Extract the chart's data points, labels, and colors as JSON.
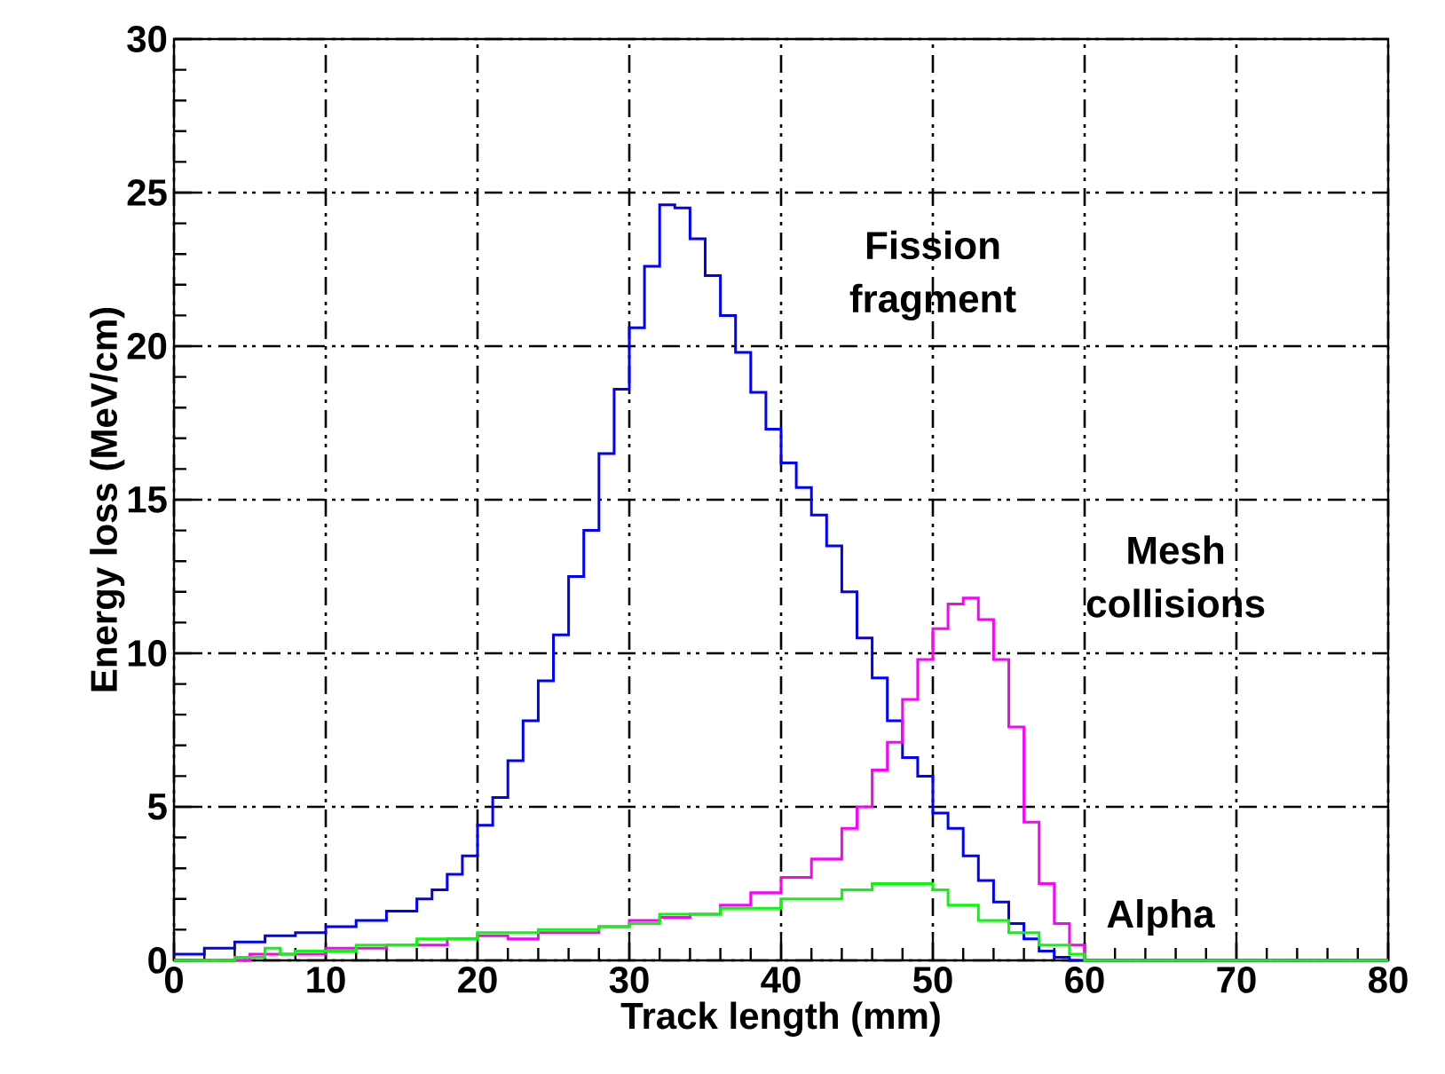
{
  "chart_data": {
    "type": "step",
    "xlabel": "Track length (mm)",
    "ylabel": "Energy loss (MeV/cm)",
    "xlim": [
      0,
      80
    ],
    "ylim": [
      0,
      30
    ],
    "xticks": [
      0,
      10,
      20,
      30,
      40,
      50,
      60,
      70,
      80
    ],
    "yticks": [
      0,
      5,
      10,
      15,
      20,
      25,
      30
    ],
    "grid": true,
    "series": [
      {
        "name": "Fission fragment",
        "color": "#0000ff",
        "x": [
          0,
          2,
          4,
          6,
          8,
          10,
          12,
          14,
          16,
          17,
          18,
          19,
          20,
          21,
          22,
          23,
          24,
          25,
          26,
          27,
          28,
          29,
          30,
          31,
          32,
          33,
          34,
          35,
          36,
          37,
          38,
          39,
          40,
          41,
          42,
          43,
          44,
          45,
          46,
          47,
          48,
          49,
          50,
          51,
          52,
          53,
          54,
          55,
          56,
          57,
          58,
          59,
          80
        ],
        "values": [
          0.2,
          0.4,
          0.6,
          0.8,
          0.9,
          1.1,
          1.3,
          1.6,
          2.0,
          2.3,
          2.8,
          3.4,
          4.4,
          5.3,
          6.5,
          7.8,
          9.1,
          10.6,
          12.5,
          14.0,
          16.5,
          18.6,
          20.6,
          22.6,
          24.6,
          24.5,
          23.5,
          22.3,
          21.0,
          19.8,
          18.5,
          17.3,
          16.2,
          15.4,
          14.5,
          13.5,
          12.0,
          10.5,
          9.2,
          7.8,
          6.6,
          6.0,
          4.8,
          4.3,
          3.4,
          2.6,
          1.9,
          1.2,
          0.7,
          0.3,
          0.1,
          0,
          0
        ]
      },
      {
        "name": "Mesh collisions",
        "color": "#ff00ff",
        "x": [
          0,
          5,
          8,
          10,
          14,
          18,
          20,
          22,
          24,
          28,
          30,
          32,
          34,
          36,
          38,
          40,
          42,
          44,
          45,
          46,
          47,
          48,
          49,
          50,
          51,
          52,
          53,
          54,
          55,
          56,
          57,
          58,
          59,
          60,
          80
        ],
        "values": [
          0,
          0.2,
          0.2,
          0.4,
          0.5,
          0.7,
          0.8,
          0.7,
          0.9,
          1.1,
          1.3,
          1.4,
          1.5,
          1.8,
          2.2,
          2.7,
          3.3,
          4.3,
          5.0,
          6.2,
          7.1,
          8.5,
          9.8,
          10.8,
          11.6,
          11.8,
          11.1,
          9.8,
          7.6,
          4.5,
          2.5,
          1.2,
          0.5,
          0,
          0
        ]
      },
      {
        "name": "Alpha",
        "color": "#00ff00",
        "x": [
          0,
          4,
          6,
          7,
          8,
          12,
          16,
          20,
          24,
          28,
          30,
          32,
          36,
          40,
          44,
          46,
          48,
          50,
          51,
          53,
          55,
          57,
          59,
          60,
          80
        ],
        "values": [
          0,
          0.1,
          0.4,
          0.2,
          0.3,
          0.5,
          0.7,
          0.9,
          1.0,
          1.1,
          1.2,
          1.5,
          1.7,
          2.0,
          2.3,
          2.5,
          2.5,
          2.3,
          1.8,
          1.3,
          0.9,
          0.5,
          0.2,
          0,
          0
        ]
      }
    ]
  }
}
